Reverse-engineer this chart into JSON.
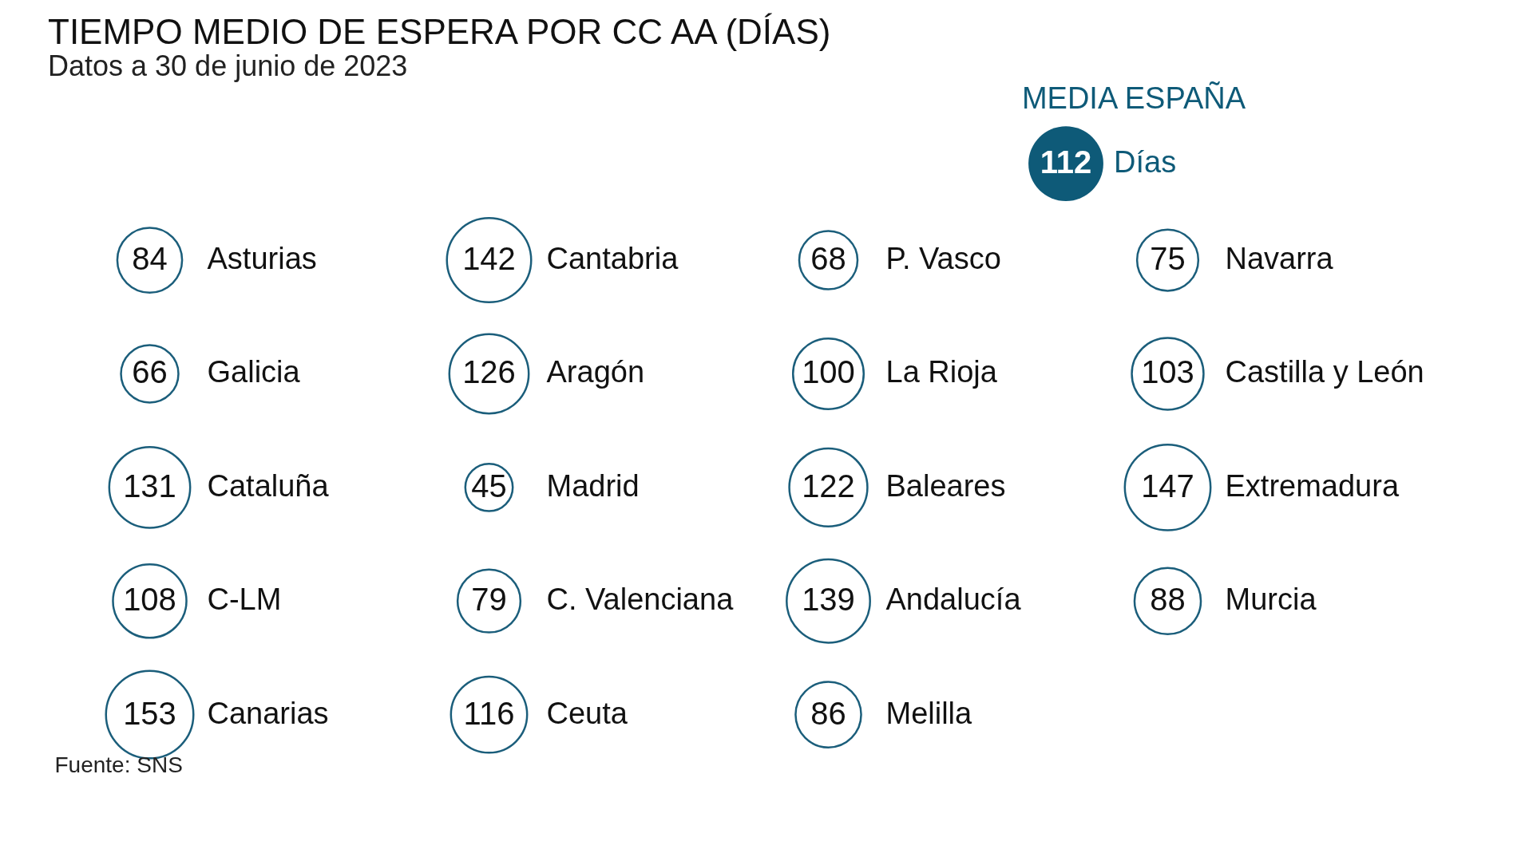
{
  "chart_data": {
    "type": "other",
    "title": "TIEMPO MEDIO DE ESPERA POR CC AA (DÍAS)",
    "subtitle": "Datos a 30 de junio de 2023",
    "categories": [
      "Asturias",
      "Cantabria",
      "P. Vasco",
      "Navarra",
      "Galicia",
      "Aragón",
      "La Rioja",
      "Castilla y León",
      "Cataluña",
      "Madrid",
      "Baleares",
      "Extremadura",
      "C-LM",
      "C. Valenciana",
      "Andalucía",
      "Murcia",
      "Canarias",
      "Ceuta",
      "Melilla"
    ],
    "values": [
      84,
      142,
      68,
      75,
      66,
      126,
      100,
      103,
      131,
      45,
      122,
      147,
      108,
      79,
      139,
      88,
      153,
      116,
      86
    ],
    "color": "#1b5e7b",
    "data_labels": true,
    "annotations": [
      "MEDIA ESPAÑA",
      "112",
      "Días",
      "Fuente: SNS"
    ]
  }
}
